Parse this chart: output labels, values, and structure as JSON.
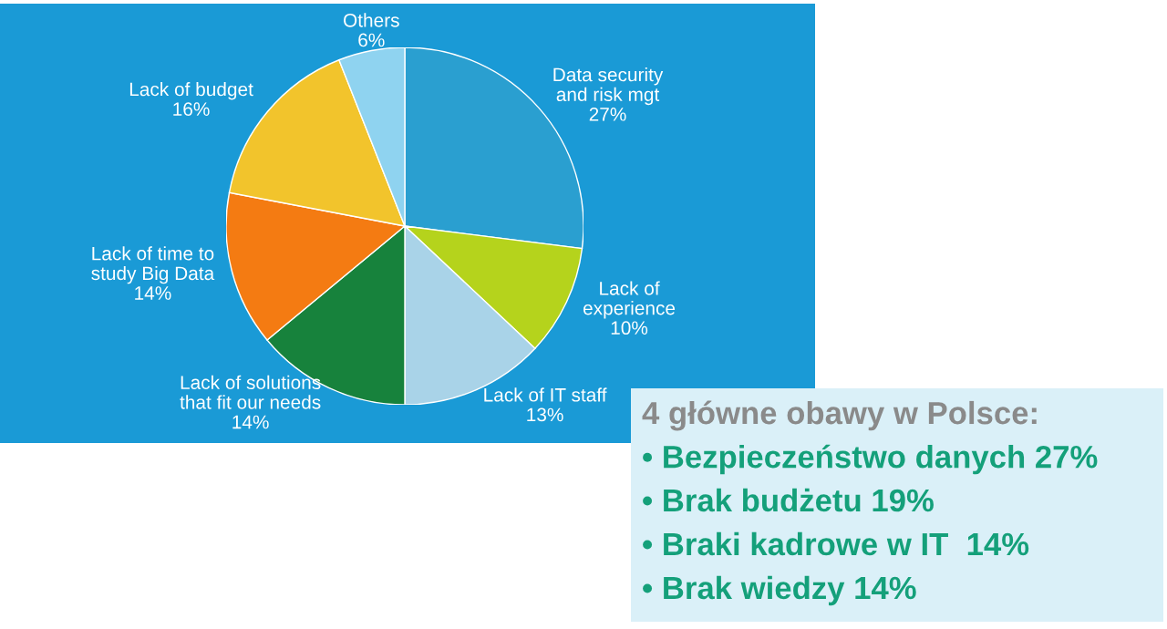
{
  "chart_data": {
    "type": "pie",
    "categories": [
      "Data security\nand risk mgt",
      "Lack of\nexperience",
      "Lack of IT staff",
      "Lack of solutions\nthat fit our needs",
      "Lack of time to\nstudy Big Data",
      "Lack of budget",
      "Others"
    ],
    "values": [
      27,
      10,
      13,
      14,
      14,
      16,
      6
    ],
    "value_labels": [
      "27%",
      "10%",
      "13%",
      "14%",
      "14%",
      "16%",
      "6%"
    ],
    "colors": [
      "#2a9fd0",
      "#b5d31c",
      "#a9d3e8",
      "#17823c",
      "#f47b12",
      "#f2c42c",
      "#8fd3f0"
    ],
    "annotations": [
      "4 główne obawy w Polsce:",
      "• Bezpieczeństwo danych 27%",
      "• Brak budżetu 19%",
      "• Braki kadrowe w IT  14%",
      "• Brak wiedzy 14%"
    ]
  }
}
